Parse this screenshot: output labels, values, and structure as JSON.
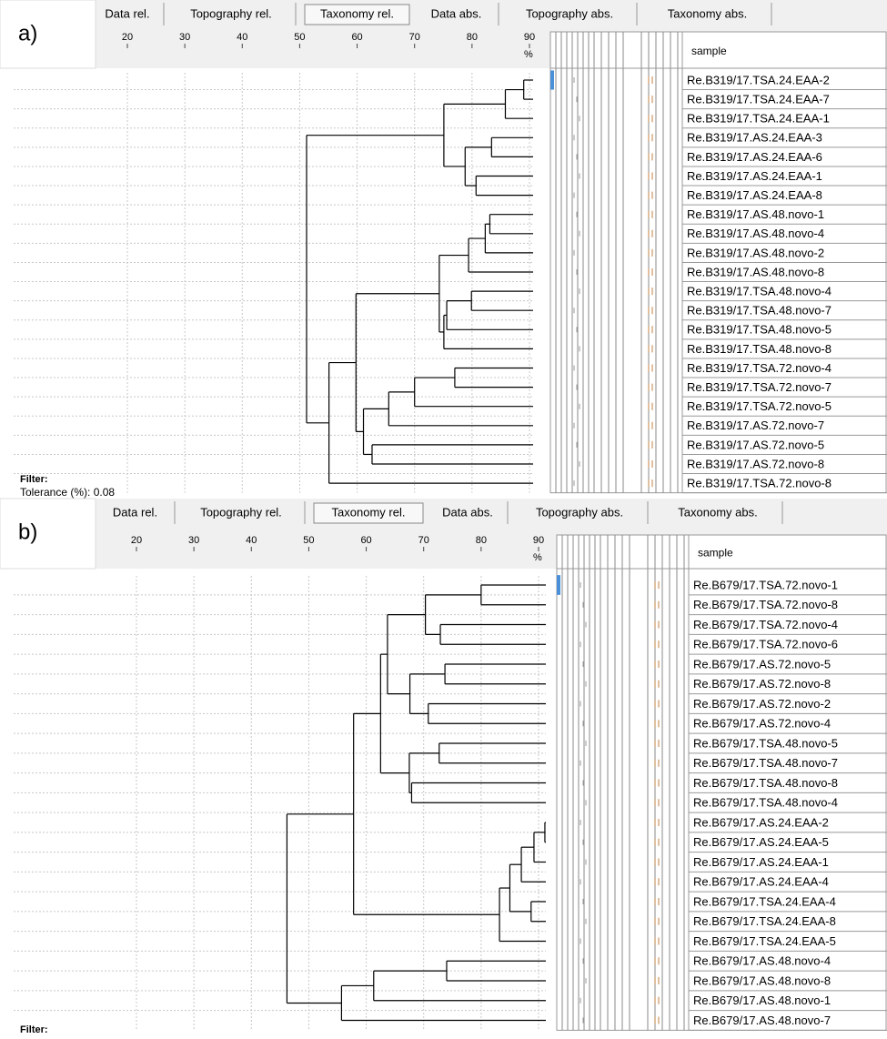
{
  "panels": [
    {
      "label": "a)",
      "tabs": [
        "Data rel.",
        "Topography rel.",
        "Taxonomy rel.",
        "Data abs.",
        "Topography abs.",
        "Taxonomy abs."
      ],
      "active_tab": 2,
      "xlim": [
        0,
        90
      ],
      "xticks": [
        20,
        30,
        40,
        50,
        60,
        70,
        80,
        90
      ],
      "unit": "%",
      "column_header": "sample",
      "samples": [
        "Re.B319/17.TSA.24.EAA-2",
        "Re.B319/17.TSA.24.EAA-7",
        "Re.B319/17.TSA.24.EAA-1",
        "Re.B319/17.AS.24.EAA-3",
        "Re.B319/17.AS.24.EAA-6",
        "Re.B319/17.AS.24.EAA-1",
        "Re.B319/17.AS.24.EAA-8",
        "Re.B319/17.AS.48.novo-1",
        "Re.B319/17.AS.48.novo-4",
        "Re.B319/17.AS.48.novo-2",
        "Re.B319/17.AS.48.novo-8",
        "Re.B319/17.TSA.48.novo-4",
        "Re.B319/17.TSA.48.novo-7",
        "Re.B319/17.TSA.48.novo-5",
        "Re.B319/17.TSA.48.novo-8",
        "Re.B319/17.TSA.72.novo-4",
        "Re.B319/17.TSA.72.novo-7",
        "Re.B319/17.TSA.72.novo-5",
        "Re.B319/17.AS.72.novo-7",
        "Re.B319/17.AS.72.novo-5",
        "Re.B319/17.AS.72.novo-8",
        "Re.B319/17.TSA.72.novo-8"
      ],
      "tree": {
        "level": 51.2,
        "children": [
          {
            "level": 75.1,
            "children": [
              {
                "level": 85.8,
                "children": [
                  {
                    "level": 89.0,
                    "children": [
                      {},
                      {}
                    ]
                  },
                  {}
                ]
              },
              {
                "level": 78.8,
                "children": [
                  {
                    "level": 83.4,
                    "children": [
                      {},
                      {}
                    ]
                  },
                  {
                    "level": 80.7,
                    "children": [
                      {},
                      {}
                    ]
                  }
                ]
              }
            ]
          },
          {
            "level": 55.1,
            "children": [
              {
                "level": 59.8,
                "children": [
                  {
                    "level": 74.3,
                    "children": [
                      {
                        "level": 79.4,
                        "children": [
                          {
                            "level": 82.3,
                            "children": [
                              {
                                "level": 83.1,
                                "children": [
                                  {},
                                  {}
                                ]
                              },
                              {}
                            ]
                          },
                          {}
                        ]
                      },
                      {
                        "level": 75.1,
                        "children": [
                          {
                            "level": 75.6,
                            "children": [
                              {
                                "level": 79.9,
                                "children": [
                                  {},
                                  {}
                                ]
                              },
                              {}
                            ]
                          },
                          {}
                        ]
                      }
                    ]
                  },
                  {
                    "level": 61.1,
                    "children": [
                      {
                        "level": 65.5,
                        "children": [
                          {
                            "level": 70.0,
                            "children": [
                              {
                                "level": 77.0,
                                "children": [
                                  {},
                                  {}
                                ]
                              },
                              {}
                            ]
                          },
                          {}
                        ]
                      },
                      {
                        "level": 62.6,
                        "children": [
                          {},
                          {}
                        ]
                      }
                    ]
                  }
                ]
              },
              {}
            ]
          }
        ]
      },
      "filter": "Filter:",
      "tolerance": "Tolerance (%): 0.08"
    },
    {
      "label": "b)",
      "tabs": [
        "Data rel.",
        "Topography rel.",
        "Taxonomy rel.",
        "Data abs.",
        "Topography abs.",
        "Taxonomy abs."
      ],
      "active_tab": 2,
      "xlim": [
        0,
        90
      ],
      "xticks": [
        20,
        30,
        40,
        50,
        60,
        70,
        80,
        90
      ],
      "unit": "%",
      "column_header": "sample",
      "samples": [
        "Re.B679/17.TSA.72.novo-1",
        "Re.B679/17.TSA.72.novo-8",
        "Re.B679/17.TSA.72.novo-4",
        "Re.B679/17.TSA.72.novo-6",
        "Re.B679/17.AS.72.novo-5",
        "Re.B679/17.AS.72.novo-8",
        "Re.B679/17.AS.72.novo-2",
        "Re.B679/17.AS.72.novo-4",
        "Re.B679/17.TSA.48.novo-5",
        "Re.B679/17.TSA.48.novo-7",
        "Re.B679/17.TSA.48.novo-8",
        "Re.B679/17.TSA.48.novo-4",
        "Re.B679/17.AS.24.EAA-2",
        "Re.B679/17.AS.24.EAA-5",
        "Re.B679/17.AS.24.EAA-1",
        "Re.B679/17.AS.24.EAA-4",
        "Re.B679/17.TSA.24.EAA-4",
        "Re.B679/17.TSA.24.EAA-8",
        "Re.B679/17.TSA.24.EAA-5",
        "Re.B679/17.AS.48.novo-4",
        "Re.B679/17.AS.48.novo-8",
        "Re.B679/17.AS.48.novo-1",
        "Re.B679/17.AS.48.novo-7"
      ],
      "tree": {
        "level": 46.2,
        "children": [
          {
            "level": 57.8,
            "children": [
              {
                "level": 62.5,
                "children": [
                  {
                    "level": 63.7,
                    "children": [
                      {
                        "level": 70.3,
                        "children": [
                          {
                            "level": 80.0,
                            "children": [
                              {},
                              {}
                            ]
                          },
                          {
                            "level": 72.9,
                            "children": [
                              {},
                              {}
                            ]
                          }
                        ]
                      },
                      {
                        "level": 67.6,
                        "children": [
                          {
                            "level": 73.7,
                            "children": [
                              {},
                              {}
                            ]
                          },
                          {
                            "level": 70.8,
                            "children": [
                              {},
                              {}
                            ]
                          }
                        ]
                      }
                    ]
                  },
                  {
                    "level": 67.5,
                    "children": [
                      {
                        "level": 72.7,
                        "children": [
                          {},
                          {}
                        ]
                      },
                      {
                        "level": 67.9,
                        "children": [
                          {},
                          {}
                        ]
                      }
                    ]
                  }
                ]
              },
              {
                "level": 83.2,
                "children": [
                  {
                    "level": 85.0,
                    "children": [
                      {
                        "level": 87.0,
                        "children": [
                          {
                            "level": 89.2,
                            "children": [
                              {
                                "level": 91.1,
                                "children": [
                                  {},
                                  {}
                                ]
                              },
                              {}
                            ]
                          },
                          {}
                        ]
                      },
                      {
                        "level": 88.7,
                        "children": [
                          {},
                          {}
                        ]
                      }
                    ]
                  },
                  {}
                ]
              }
            ]
          },
          {
            "level": 55.7,
            "children": [
              {
                "level": 61.3,
                "children": [
                  {
                    "level": 74.0,
                    "children": [
                      {},
                      {}
                    ]
                  },
                  {}
                ]
              },
              {}
            ]
          }
        ]
      },
      "filter": "Filter:"
    }
  ]
}
